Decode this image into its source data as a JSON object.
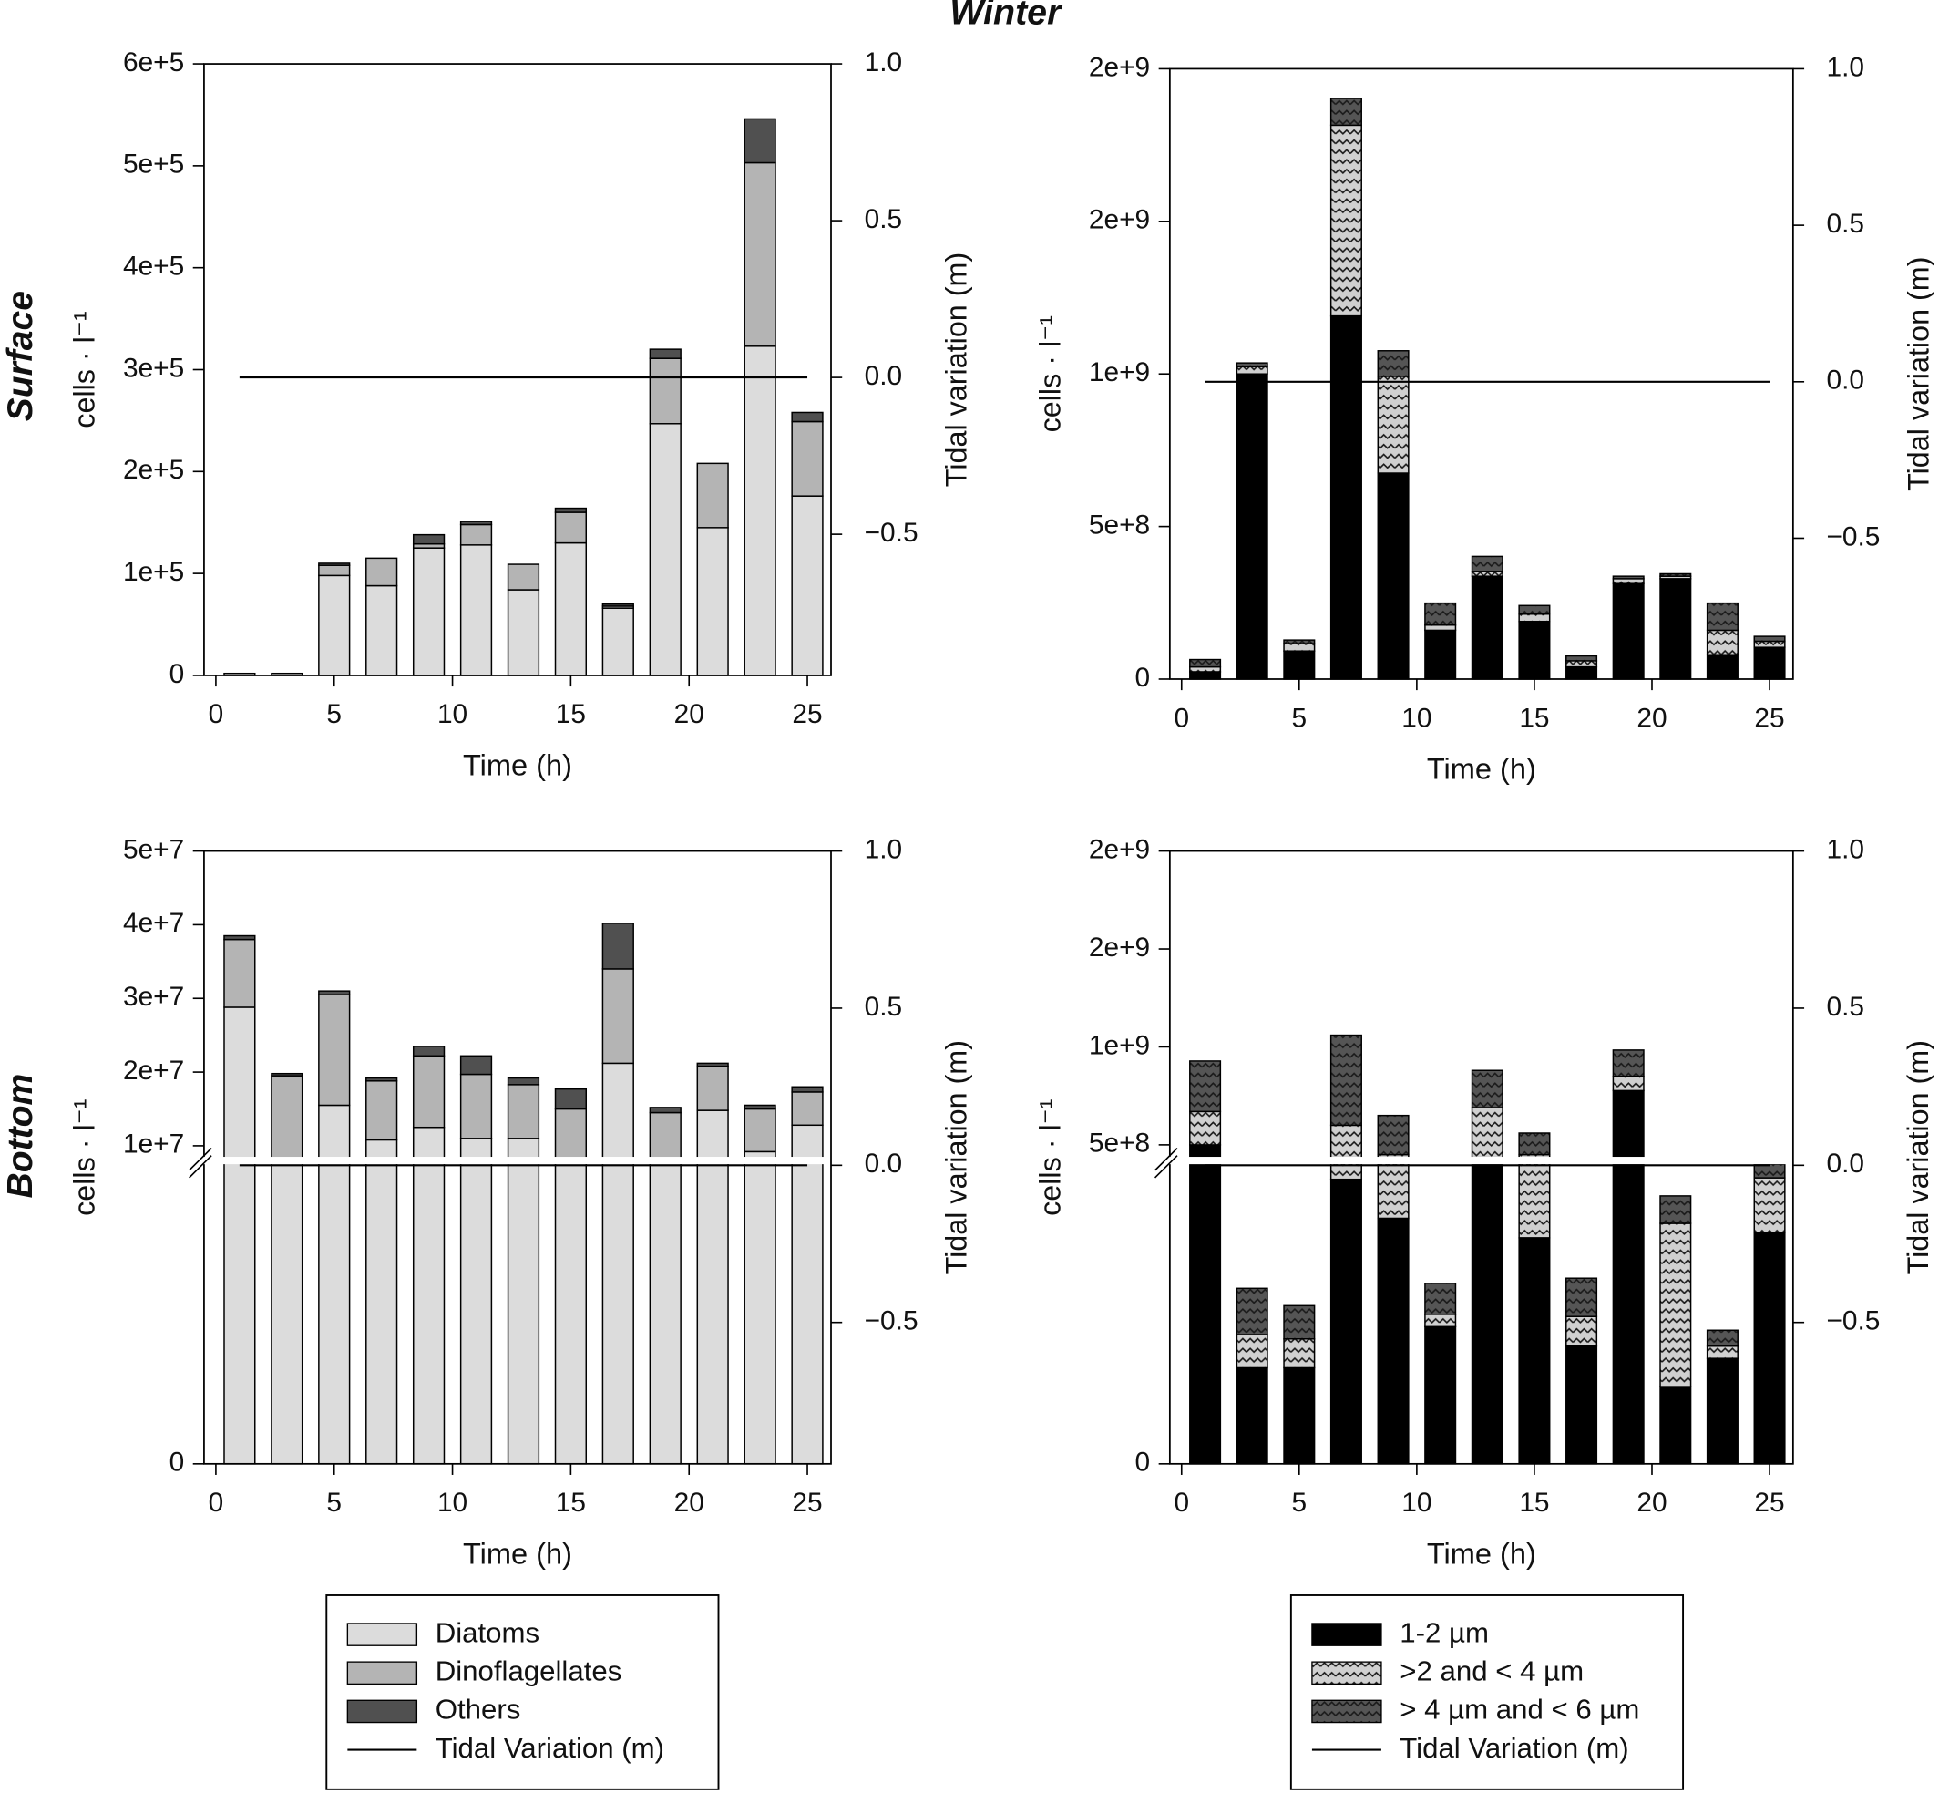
{
  "title": "Winter",
  "rows": [
    "Surface",
    "Bottom"
  ],
  "chart_data": [
    {
      "type": "bar",
      "stacked": true,
      "xlabel": "Time (h)",
      "ylabel": "cells · l⁻¹",
      "y2label": "Tidal variation (m)",
      "x": [
        1,
        3,
        5,
        7,
        9,
        11,
        13,
        15,
        17,
        19,
        21,
        23,
        25
      ],
      "xlim": [
        -0.5,
        26
      ],
      "xticks": [
        0,
        5,
        10,
        15,
        20,
        25
      ],
      "ylim": [
        0,
        600000
      ],
      "yticks": [
        0,
        {
          "value": 100000,
          "label": "1e+5"
        },
        {
          "value": 200000,
          "label": "2e+5"
        },
        {
          "value": 300000,
          "label": "3e+5"
        },
        {
          "value": 400000,
          "label": "4e+5"
        },
        {
          "value": 500000,
          "label": "5e+5"
        },
        {
          "value": 600000,
          "label": "6e+5"
        }
      ],
      "y2lim": [
        -0.95,
        1
      ],
      "y2ticks": [
        {
          "value": 1,
          "label": "1.0"
        },
        0.5,
        {
          "value": 0,
          "label": "0.0"
        },
        {
          "value": -0.5,
          "label": "−0.5"
        }
      ],
      "series": [
        {
          "name": "Diatoms",
          "color": "#dcdcdc",
          "values": [
            2000,
            2000,
            98000,
            88000,
            125000,
            128000,
            84000,
            130000,
            66000,
            247000,
            145000,
            323000,
            176000
          ]
        },
        {
          "name": "Dinoflagellates",
          "color": "#b4b4b4",
          "values": [
            0,
            0,
            10000,
            27000,
            4000,
            20000,
            25000,
            30000,
            2000,
            64000,
            63000,
            180000,
            73000
          ]
        },
        {
          "name": "Others",
          "color": "#505050",
          "values": [
            0,
            0,
            2000,
            0,
            9000,
            3000,
            0,
            4000,
            2000,
            9000,
            0,
            43000,
            9000
          ]
        },
        {
          "name": "Tidal Variation (m)",
          "color": "#000000",
          "type": "line",
          "axis": "y2",
          "values": [
            0,
            0,
            0,
            0,
            0,
            0,
            0,
            0,
            0,
            0,
            0,
            0,
            0
          ]
        }
      ]
    },
    {
      "type": "bar",
      "stacked": true,
      "xlabel": "Time (h)",
      "ylabel": "cells · l⁻¹",
      "y2label": "Tidal variation (m)",
      "x": [
        1,
        3,
        5,
        7,
        9,
        11,
        13,
        15,
        17,
        19,
        21,
        23,
        25
      ],
      "xlim": [
        -0.5,
        26
      ],
      "xticks": [
        0,
        5,
        10,
        15,
        20,
        25
      ],
      "ylim": [
        0,
        2000000000
      ],
      "yticks": [
        0,
        {
          "value": 500000000,
          "label": "5e+8"
        },
        {
          "value": 1000000000,
          "label": "1e+9"
        },
        {
          "value": 1500000000,
          "label": "2e+9"
        },
        {
          "value": 2000000000,
          "label": "2e+9"
        }
      ],
      "y2lim": [
        -0.95,
        1
      ],
      "y2ticks": [
        {
          "value": 1,
          "label": "1.0"
        },
        0.5,
        {
          "value": 0,
          "label": "0.0"
        },
        {
          "value": -0.5,
          "label": "−0.5"
        }
      ],
      "series": [
        {
          "name": "1-2 µm",
          "color": "#000000",
          "values": [
            24000000,
            1000000000,
            92000000,
            1190000000,
            675000000,
            160000000,
            337000000,
            189000000,
            40000000,
            313000000,
            329000000,
            80000000,
            104000000
          ]
        },
        {
          "name": ">2 and < 4 µm",
          "color": "#d0d0d0",
          "pattern": "wave",
          "values": [
            16000000,
            24000000,
            24000000,
            625000000,
            317000000,
            17000000,
            16000000,
            24000000,
            20000000,
            16000000,
            8000000,
            80000000,
            20000000
          ]
        },
        {
          "name": "> 4 µm and < 6 µm",
          "color": "#555555",
          "pattern": "wave",
          "values": [
            24000000,
            12000000,
            12000000,
            88000000,
            84000000,
            72000000,
            49000000,
            28000000,
            16000000,
            8000000,
            8000000,
            89000000,
            16000000
          ]
        },
        {
          "name": "Tidal Variation (m)",
          "color": "#000000",
          "type": "line",
          "axis": "y2",
          "values": [
            0,
            0,
            0,
            0,
            0,
            0,
            0,
            0,
            0,
            0,
            0,
            0,
            0
          ]
        }
      ]
    },
    {
      "type": "bar",
      "stacked": true,
      "xlabel": "Time (h)",
      "ylabel": "cells · l⁻¹",
      "y2label": "Tidal variation (m)",
      "x": [
        1,
        3,
        5,
        7,
        9,
        11,
        13,
        15,
        17,
        19,
        21,
        23,
        25
      ],
      "xlim": [
        -0.5,
        26
      ],
      "xticks": [
        0,
        5,
        10,
        15,
        20,
        25
      ],
      "ylim": [
        0,
        50000000
      ],
      "ybreak": 8000000,
      "yticks": [
        0,
        {
          "value": 10000000,
          "label": "1e+7"
        },
        {
          "value": 20000000,
          "label": "2e+7"
        },
        {
          "value": 30000000,
          "label": "3e+7"
        },
        {
          "value": 40000000,
          "label": "4e+7"
        },
        {
          "value": 50000000,
          "label": "5e+7"
        }
      ],
      "y2lim": [
        -0.95,
        1
      ],
      "y2ticks": [
        {
          "value": 1,
          "label": "1.0"
        },
        0.5,
        {
          "value": 0,
          "label": "0.0"
        },
        {
          "value": -0.5,
          "label": "−0.5"
        }
      ],
      "series": [
        {
          "color": "#dcdcdc",
          "values": [
            28800000,
            8000000,
            15500000,
            10800000,
            12500000,
            11000000,
            11000000,
            8000000,
            21200000,
            8000000,
            14800000,
            9200000,
            12800000
          ]
        },
        {
          "color": "#b4b4b4",
          "values": [
            9200000,
            11500000,
            15000000,
            8000000,
            9700000,
            8700000,
            7300000,
            7000000,
            12800000,
            6500000,
            6000000,
            5800000,
            4500000
          ]
        },
        {
          "color": "#505050",
          "values": [
            500000,
            300000,
            500000,
            400000,
            1300000,
            2500000,
            900000,
            2700000,
            6200000,
            700000,
            400000,
            500000,
            700000
          ]
        },
        {
          "color": "#000000",
          "type": "line",
          "axis": "y2",
          "values": [
            0,
            0,
            0,
            0,
            0,
            0,
            0,
            0,
            0,
            0,
            0,
            0,
            0
          ]
        }
      ]
    },
    {
      "type": "bar",
      "stacked": true,
      "xlabel": "Time (h)",
      "ylabel": "cells · l⁻¹",
      "y2label": "Tidal variation (m)",
      "x": [
        1,
        3,
        5,
        7,
        9,
        11,
        13,
        15,
        17,
        19,
        21,
        23,
        25
      ],
      "xlim": [
        -0.5,
        26
      ],
      "xticks": [
        0,
        5,
        10,
        15,
        20,
        25
      ],
      "ylim": [
        0,
        2000000000
      ],
      "ybreak": 420000000,
      "yticks": [
        0,
        {
          "value": 500000000,
          "label": "5e+8"
        },
        {
          "value": 1000000000,
          "label": "1e+9"
        },
        {
          "value": 1500000000,
          "label": "2e+9"
        },
        {
          "value": 2000000000,
          "label": "2e+9"
        }
      ],
      "y2lim": [
        -0.95,
        1
      ],
      "y2ticks": [
        {
          "value": 1,
          "label": "1.0"
        },
        0.5,
        {
          "value": 0,
          "label": "0.0"
        },
        {
          "value": -0.5,
          "label": "−0.5"
        }
      ],
      "series": [
        {
          "color": "#000000",
          "values": [
            500000000,
            133000000,
            133000000,
            394000000,
            340000000,
            190000000,
            420000000,
            313000000,
            163000000,
            777000000,
            107000000,
            146000000,
            320000000
          ]
        },
        {
          "color": "#d0d0d0",
          "pattern": "wave",
          "values": [
            170000000,
            46000000,
            40000000,
            206000000,
            110000000,
            17000000,
            270000000,
            137000000,
            41000000,
            73000000,
            226000000,
            17000000,
            76000000
          ]
        },
        {
          "color": "#555555",
          "pattern": "wave",
          "values": [
            258000000,
            64000000,
            46000000,
            460000000,
            200000000,
            43000000,
            190000000,
            110000000,
            53000000,
            134000000,
            38000000,
            22000000,
            19000000
          ]
        },
        {
          "color": "#000000",
          "type": "line",
          "axis": "y2",
          "values": [
            0,
            0,
            0,
            0,
            0,
            0,
            0,
            0,
            0,
            0,
            0,
            0,
            0
          ]
        }
      ]
    }
  ]
}
